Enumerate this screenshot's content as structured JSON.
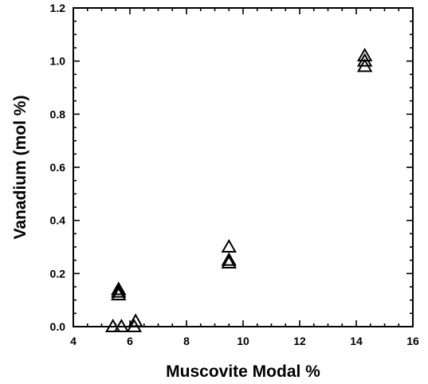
{
  "chart_data": {
    "type": "scatter",
    "title": "",
    "xlabel": "Muscovite  Modal  %",
    "ylabel": "Vanadium (mol %)",
    "xlim": [
      4,
      16
    ],
    "ylim": [
      0,
      1.2
    ],
    "x_ticks": [
      "4",
      "6",
      "8",
      "10",
      "12",
      "14",
      "16"
    ],
    "y_ticks": [
      "0.0",
      "0.2",
      "0.4",
      "0.6",
      "0.8",
      "1.0",
      "1.2"
    ],
    "grid": false,
    "marker": "open-triangle",
    "series": [
      {
        "points": [
          {
            "x": 5.6,
            "y": 0.14
          },
          {
            "x": 5.6,
            "y": 0.13
          },
          {
            "x": 5.6,
            "y": 0.12
          },
          {
            "x": 5.4,
            "y": 0.0
          },
          {
            "x": 5.7,
            "y": 0.0
          },
          {
            "x": 6.15,
            "y": 0.0
          },
          {
            "x": 6.2,
            "y": 0.02
          },
          {
            "x": 9.5,
            "y": 0.3
          },
          {
            "x": 9.5,
            "y": 0.25
          },
          {
            "x": 9.5,
            "y": 0.24
          },
          {
            "x": 14.3,
            "y": 1.02
          },
          {
            "x": 14.3,
            "y": 1.0
          },
          {
            "x": 14.3,
            "y": 0.98
          }
        ]
      }
    ]
  }
}
